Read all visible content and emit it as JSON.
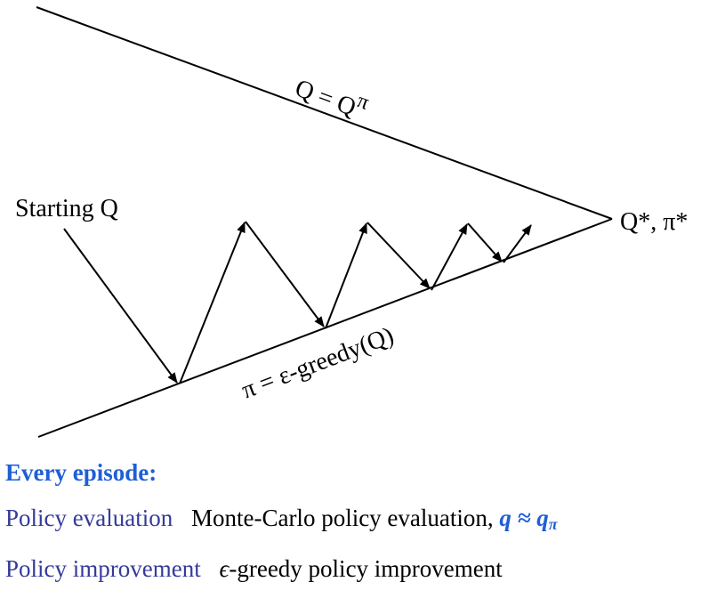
{
  "diagram": {
    "upper_line_label": "Q = Q",
    "upper_line_label_sup": "π",
    "lower_line_label": "π = ε-greedy(Q)",
    "start_label": "Starting Q",
    "end_label": "Q*, π*"
  },
  "legend": {
    "heading": "Every episode:",
    "rows": [
      {
        "term": "Policy evaluation",
        "description": "Monte-Carlo policy evaluation,",
        "math": "q ≈ q",
        "math_sub": "π"
      },
      {
        "term": "Policy improvement",
        "symbol": "ϵ",
        "description": "-greedy policy improvement"
      }
    ]
  },
  "colors": {
    "heading": "#1f5fd6",
    "term": "#353a9a",
    "math": "#1f5fd6",
    "lines": "#000000"
  }
}
